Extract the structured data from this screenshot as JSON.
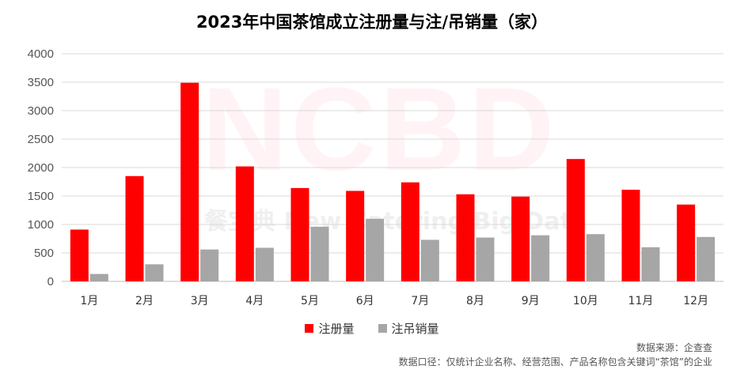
{
  "title": "2023年中国茶馆成立注册量与注/吊销量（家）",
  "watermark": {
    "logo": "NCBD",
    "sub": "餐宝典 New Catering Big Data"
  },
  "chart_data": {
    "type": "bar",
    "title": "2023年中国茶馆成立注册量与注/吊销量（家）",
    "categories": [
      "1月",
      "2月",
      "3月",
      "4月",
      "5月",
      "6月",
      "7月",
      "8月",
      "9月",
      "10月",
      "11月",
      "12月"
    ],
    "series": [
      {
        "name": "注册量",
        "color": "#ff0000",
        "values": [
          910,
          1850,
          3490,
          2020,
          1640,
          1590,
          1740,
          1530,
          1490,
          2150,
          1610,
          1350
        ]
      },
      {
        "name": "注吊销量",
        "color": "#a6a6a6",
        "values": [
          130,
          300,
          560,
          590,
          960,
          1100,
          730,
          770,
          810,
          830,
          600,
          780
        ]
      }
    ],
    "ylim": [
      0,
      4000
    ],
    "yticks": [
      0,
      500,
      1000,
      1500,
      2000,
      2500,
      3000,
      3500,
      4000
    ],
    "grid": true,
    "legend": "bottom"
  },
  "notes": {
    "source": "数据来源：企查查",
    "scope": "数据口径：仅统计企业名称、经营范围、产品名称包含关键词“茶馆”的企业"
  }
}
